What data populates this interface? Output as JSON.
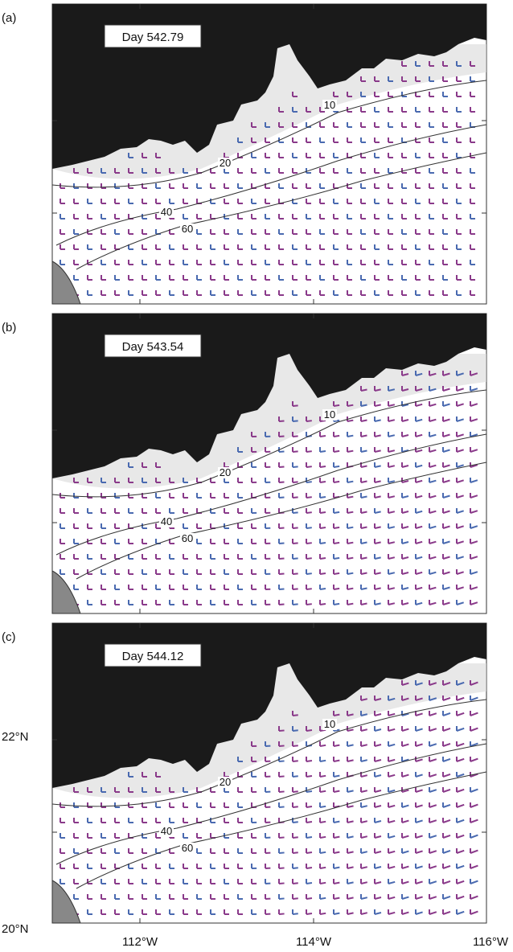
{
  "panels": [
    {
      "label": "(a)",
      "day": "Day 542.79",
      "contour_labels": [
        "10",
        "20",
        "40",
        "60"
      ]
    },
    {
      "label": "(b)",
      "day": "Day 543.54",
      "contour_labels": [
        "10",
        "20",
        "40",
        "60"
      ]
    },
    {
      "label": "(c)",
      "day": "Day 544.12",
      "contour_labels": [
        "10",
        "20",
        "40",
        "60"
      ]
    }
  ],
  "y_labels": [
    "22°N",
    "20°N"
  ],
  "x_labels": [
    "112°W",
    "114°W",
    "116°W"
  ]
}
